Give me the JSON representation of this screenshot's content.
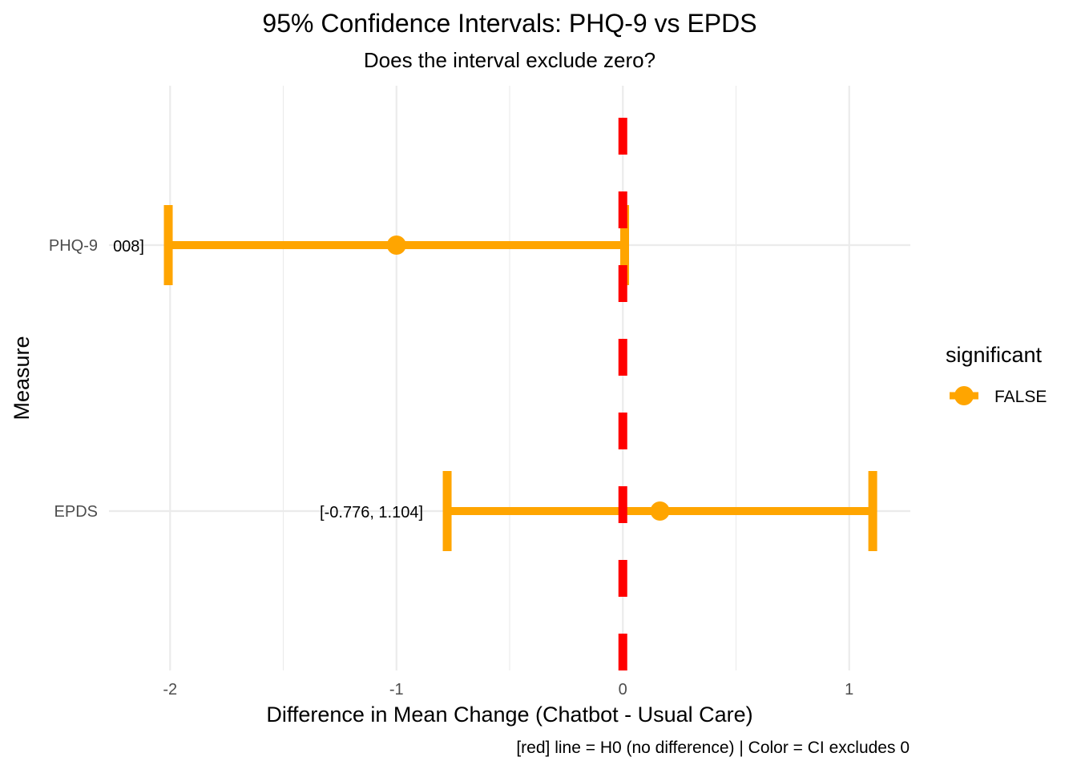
{
  "chart_data": {
    "type": "errorbar",
    "title": "95% Confidence Intervals: PHQ-9 vs EPDS",
    "subtitle": "Does the interval exclude zero?",
    "xlabel": "Difference in Mean Change (Chatbot - Usual Care)",
    "ylabel": "Measure",
    "caption": "[red] line = H0 (no difference) | Color = CI excludes 0",
    "xlim": [
      -2.27,
      1.27
    ],
    "x_ticks": [
      -2,
      -1,
      0,
      1
    ],
    "x_tick_labels": [
      "-2",
      "-1",
      "0",
      "1"
    ],
    "categories": [
      "PHQ-9",
      "EPDS"
    ],
    "points": [
      {
        "measure": "PHQ-9",
        "estimate": -1.0,
        "lower": -2.008,
        "upper": 0.008,
        "label": "008]",
        "significant": "FALSE"
      },
      {
        "measure": "EPDS",
        "estimate": 0.164,
        "lower": -0.776,
        "upper": 1.104,
        "label": "[-0.776, 1.104]",
        "significant": "FALSE"
      }
    ],
    "reference_line": {
      "x": 0,
      "color": "#ff0000",
      "style": "dashed"
    },
    "grid": true,
    "legend": {
      "title": "significant",
      "position": "right",
      "entries": [
        {
          "label": "FALSE",
          "color": "#ffa500"
        }
      ]
    },
    "colors": {
      "FALSE": "#ffa500"
    }
  }
}
